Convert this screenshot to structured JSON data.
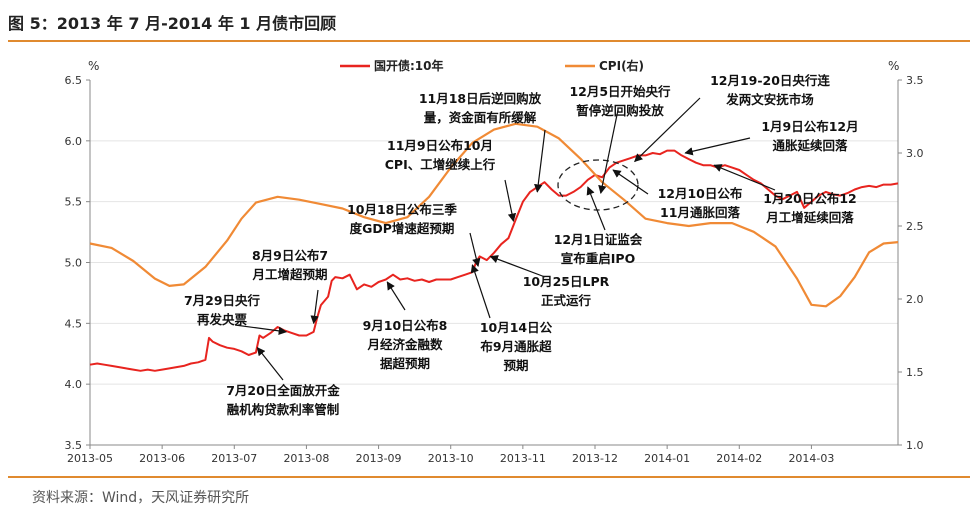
{
  "figure": {
    "title": "图 5：2013 年 7 月-2014 年 1 月债市回顾",
    "source": "资料来源：Wind，天风证券研究所"
  },
  "chart_data": {
    "type": "line",
    "y_left": {
      "unit": "%",
      "range": [
        3.5,
        6.5
      ],
      "ticks": [
        "3.5",
        "4.0",
        "4.5",
        "5.0",
        "5.5",
        "6.0",
        "6.5"
      ]
    },
    "y_right": {
      "unit": "%",
      "range": [
        1.0,
        3.5
      ],
      "ticks": [
        "1.0",
        "1.5",
        "2.0",
        "2.5",
        "3.0",
        "3.5"
      ]
    },
    "x_ticks": [
      "2013-05",
      "2013-06",
      "2013-07",
      "2013-08",
      "2013-09",
      "2013-10",
      "2013-11",
      "2013-12",
      "2014-01",
      "2014-02",
      "2014-03"
    ],
    "x_range": [
      0,
      11.2
    ],
    "legend_position": "top",
    "series": [
      {
        "name": "国开债:10年",
        "axis": "left",
        "color": "#e8241f",
        "points": [
          [
            0.0,
            4.16
          ],
          [
            0.1,
            4.17
          ],
          [
            0.2,
            4.16
          ],
          [
            0.3,
            4.15
          ],
          [
            0.4,
            4.14
          ],
          [
            0.5,
            4.13
          ],
          [
            0.6,
            4.12
          ],
          [
            0.7,
            4.11
          ],
          [
            0.8,
            4.12
          ],
          [
            0.9,
            4.11
          ],
          [
            1.0,
            4.12
          ],
          [
            1.1,
            4.13
          ],
          [
            1.2,
            4.14
          ],
          [
            1.3,
            4.15
          ],
          [
            1.4,
            4.17
          ],
          [
            1.5,
            4.18
          ],
          [
            1.6,
            4.2
          ],
          [
            1.65,
            4.38
          ],
          [
            1.7,
            4.35
          ],
          [
            1.8,
            4.32
          ],
          [
            1.9,
            4.3
          ],
          [
            2.0,
            4.29
          ],
          [
            2.1,
            4.27
          ],
          [
            2.2,
            4.24
          ],
          [
            2.3,
            4.26
          ],
          [
            2.35,
            4.4
          ],
          [
            2.4,
            4.38
          ],
          [
            2.5,
            4.42
          ],
          [
            2.6,
            4.47
          ],
          [
            2.7,
            4.44
          ],
          [
            2.8,
            4.42
          ],
          [
            2.9,
            4.4
          ],
          [
            3.0,
            4.4
          ],
          [
            3.1,
            4.43
          ],
          [
            3.15,
            4.55
          ],
          [
            3.2,
            4.65
          ],
          [
            3.3,
            4.72
          ],
          [
            3.35,
            4.85
          ],
          [
            3.4,
            4.88
          ],
          [
            3.5,
            4.87
          ],
          [
            3.6,
            4.9
          ],
          [
            3.7,
            4.78
          ],
          [
            3.8,
            4.82
          ],
          [
            3.9,
            4.8
          ],
          [
            4.0,
            4.84
          ],
          [
            4.1,
            4.86
          ],
          [
            4.2,
            4.9
          ],
          [
            4.3,
            4.86
          ],
          [
            4.4,
            4.87
          ],
          [
            4.5,
            4.85
          ],
          [
            4.6,
            4.86
          ],
          [
            4.7,
            4.84
          ],
          [
            4.8,
            4.86
          ],
          [
            4.9,
            4.86
          ],
          [
            5.0,
            4.86
          ],
          [
            5.1,
            4.88
          ],
          [
            5.2,
            4.9
          ],
          [
            5.3,
            4.92
          ],
          [
            5.35,
            5.0
          ],
          [
            5.4,
            5.05
          ],
          [
            5.5,
            5.02
          ],
          [
            5.6,
            5.08
          ],
          [
            5.7,
            5.15
          ],
          [
            5.8,
            5.2
          ],
          [
            5.9,
            5.35
          ],
          [
            6.0,
            5.5
          ],
          [
            6.1,
            5.58
          ],
          [
            6.2,
            5.62
          ],
          [
            6.3,
            5.66
          ],
          [
            6.4,
            5.6
          ],
          [
            6.5,
            5.55
          ],
          [
            6.6,
            5.55
          ],
          [
            6.7,
            5.58
          ],
          [
            6.8,
            5.62
          ],
          [
            6.9,
            5.68
          ],
          [
            7.0,
            5.72
          ],
          [
            7.1,
            5.7
          ],
          [
            7.2,
            5.78
          ],
          [
            7.3,
            5.82
          ],
          [
            7.4,
            5.84
          ],
          [
            7.5,
            5.86
          ],
          [
            7.6,
            5.88
          ],
          [
            7.7,
            5.88
          ],
          [
            7.8,
            5.9
          ],
          [
            7.9,
            5.89
          ],
          [
            8.0,
            5.92
          ],
          [
            8.1,
            5.92
          ],
          [
            8.2,
            5.88
          ],
          [
            8.3,
            5.85
          ],
          [
            8.4,
            5.82
          ],
          [
            8.5,
            5.8
          ],
          [
            8.6,
            5.8
          ],
          [
            8.7,
            5.78
          ],
          [
            8.8,
            5.8
          ],
          [
            8.9,
            5.78
          ],
          [
            9.0,
            5.76
          ],
          [
            9.1,
            5.72
          ],
          [
            9.2,
            5.68
          ],
          [
            9.3,
            5.65
          ],
          [
            9.4,
            5.6
          ],
          [
            9.5,
            5.55
          ],
          [
            9.6,
            5.52
          ],
          [
            9.7,
            5.55
          ],
          [
            9.8,
            5.58
          ],
          [
            9.9,
            5.45
          ],
          [
            10.0,
            5.5
          ],
          [
            10.1,
            5.55
          ],
          [
            10.2,
            5.58
          ],
          [
            10.3,
            5.56
          ],
          [
            10.4,
            5.55
          ],
          [
            10.5,
            5.57
          ],
          [
            10.6,
            5.6
          ],
          [
            10.7,
            5.62
          ],
          [
            10.8,
            5.63
          ],
          [
            10.9,
            5.62
          ],
          [
            11.0,
            5.64
          ],
          [
            11.1,
            5.64
          ],
          [
            11.2,
            5.65
          ]
        ]
      },
      {
        "name": "CPI(右)",
        "axis": "right",
        "color": "#f08a35",
        "points": [
          [
            0.0,
            2.38
          ],
          [
            0.3,
            2.35
          ],
          [
            0.6,
            2.26
          ],
          [
            0.9,
            2.14
          ],
          [
            1.1,
            2.09
          ],
          [
            1.3,
            2.1
          ],
          [
            1.6,
            2.22
          ],
          [
            1.9,
            2.4
          ],
          [
            2.1,
            2.55
          ],
          [
            2.3,
            2.66
          ],
          [
            2.6,
            2.7
          ],
          [
            2.9,
            2.68
          ],
          [
            3.2,
            2.65
          ],
          [
            3.5,
            2.62
          ],
          [
            3.8,
            2.56
          ],
          [
            4.1,
            2.52
          ],
          [
            4.4,
            2.56
          ],
          [
            4.7,
            2.7
          ],
          [
            5.0,
            2.9
          ],
          [
            5.3,
            3.07
          ],
          [
            5.6,
            3.16
          ],
          [
            5.9,
            3.2
          ],
          [
            6.2,
            3.18
          ],
          [
            6.5,
            3.1
          ],
          [
            6.8,
            2.96
          ],
          [
            7.1,
            2.8
          ],
          [
            7.4,
            2.68
          ],
          [
            7.7,
            2.55
          ],
          [
            8.0,
            2.52
          ],
          [
            8.3,
            2.5
          ],
          [
            8.6,
            2.52
          ],
          [
            8.9,
            2.52
          ],
          [
            9.2,
            2.46
          ],
          [
            9.5,
            2.36
          ],
          [
            9.8,
            2.14
          ],
          [
            10.0,
            1.96
          ],
          [
            10.2,
            1.95
          ],
          [
            10.4,
            2.02
          ],
          [
            10.6,
            2.15
          ],
          [
            10.8,
            2.32
          ],
          [
            11.0,
            2.38
          ],
          [
            11.2,
            2.39
          ]
        ]
      }
    ],
    "annotations": [
      {
        "lines": [
          "7月20日全面放开金",
          "融机构贷款利率管制"
        ],
        "point": [
          2.32,
          4.3
        ]
      },
      {
        "lines": [
          "7月29日央行",
          "再发央票"
        ],
        "point": [
          2.72,
          4.43
        ]
      },
      {
        "lines": [
          "8月9日公布7",
          "月工增超预期"
        ],
        "point": [
          3.1,
          4.5
        ]
      },
      {
        "lines": [
          "9月10日公布8",
          "月经济金融数",
          "据超预期"
        ],
        "point": [
          4.12,
          4.84
        ]
      },
      {
        "lines": [
          "10月18日公布三季",
          "度GDP增速超预期"
        ],
        "point": [
          5.38,
          4.97
        ]
      },
      {
        "lines": [
          "10月14日公",
          "布9月通胀超",
          "预期"
        ],
        "point": [
          5.3,
          4.98
        ]
      },
      {
        "lines": [
          "10月25日LPR",
          "正式运行"
        ],
        "point": [
          5.55,
          5.05
        ]
      },
      {
        "lines": [
          "11月9日公布10月",
          "CPI、工增继续上行"
        ],
        "point": [
          5.87,
          5.34
        ]
      },
      {
        "lines": [
          "11月18日后逆回购放",
          "量，资金面有所缓解"
        ],
        "point": [
          6.2,
          5.58
        ]
      },
      {
        "lines": [
          "12月1日证监会",
          "宣布重启IPO"
        ],
        "point": [
          6.9,
          5.62
        ]
      },
      {
        "lines": [
          "12月5日开始央行",
          "暂停逆回购投放"
        ],
        "point": [
          7.08,
          5.57
        ]
      },
      {
        "lines": [
          "12月10日公布",
          "11月通胀回落"
        ],
        "point": [
          7.25,
          5.76
        ]
      },
      {
        "lines": [
          "12月19-20日央行连",
          "发两文安抚市场"
        ],
        "point": [
          7.55,
          5.83
        ]
      },
      {
        "lines": [
          "1月9日公布12月",
          "通胀延续回落"
        ],
        "point": [
          8.25,
          5.9
        ]
      },
      {
        "lines": [
          "1月20日公布12",
          "月工增延续回落"
        ],
        "point": [
          8.65,
          5.8
        ]
      }
    ]
  }
}
